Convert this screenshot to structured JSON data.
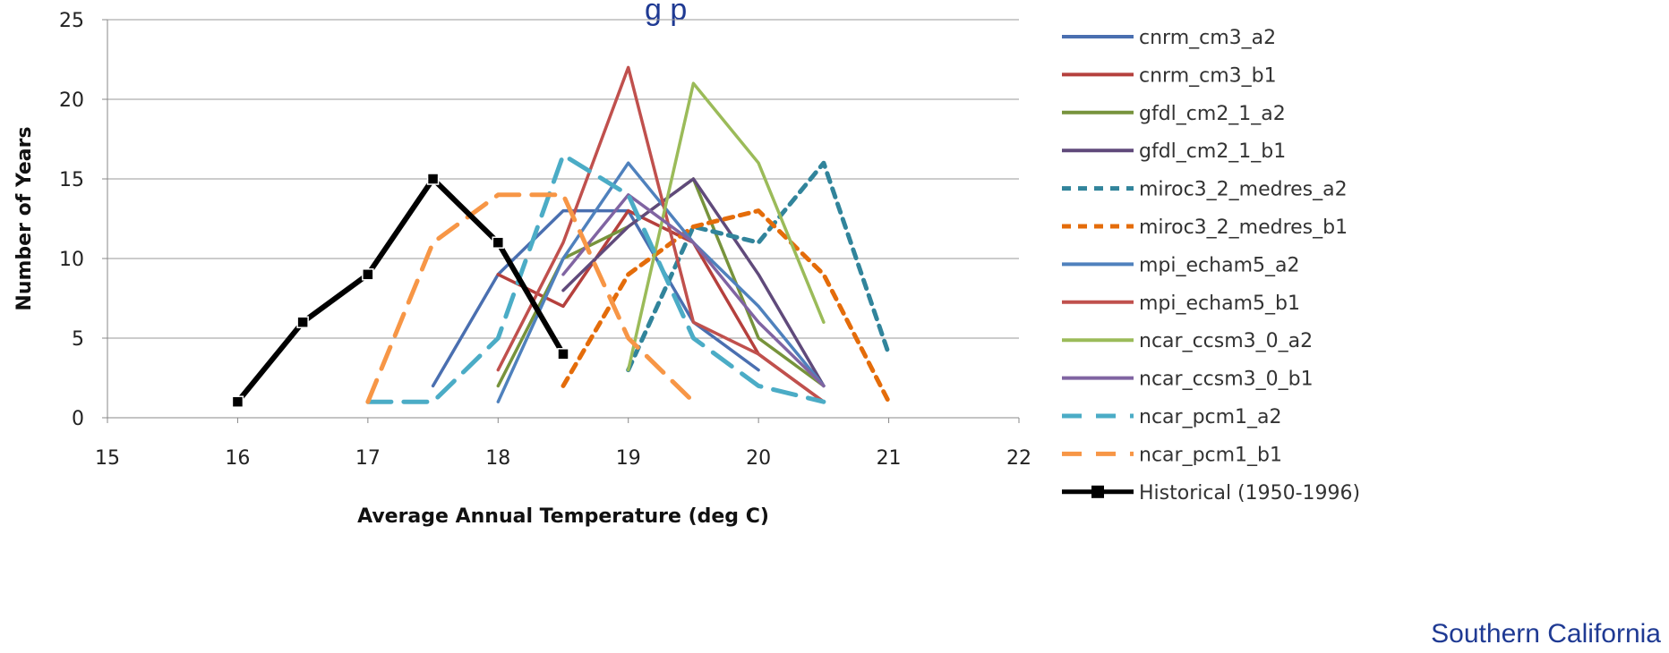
{
  "top_title_fragment": "g                                                  p",
  "footer_label": "Southern California",
  "chart_data": {
    "type": "line",
    "title": "",
    "xlabel": "Average Annual Temperature (deg C)",
    "ylabel": "Number of Years",
    "xlim": [
      15,
      22
    ],
    "ylim": [
      0,
      25
    ],
    "xticks": [
      15,
      16,
      17,
      18,
      19,
      20,
      21,
      22
    ],
    "yticks": [
      0,
      5,
      10,
      15,
      20,
      25
    ],
    "grid": "horizontal",
    "legend_position": "right",
    "series": [
      {
        "name": "cnrm_cm3_a2",
        "color": "#4a6fb0",
        "dash": "solid",
        "points": [
          [
            17.5,
            2
          ],
          [
            18,
            9
          ],
          [
            18.5,
            13
          ],
          [
            19,
            13
          ],
          [
            19.5,
            6
          ],
          [
            20,
            3
          ]
        ]
      },
      {
        "name": "cnrm_cm3_b1",
        "color": "#b5403d",
        "dash": "solid",
        "points": [
          [
            18,
            9
          ],
          [
            18.5,
            7
          ],
          [
            19,
            13
          ],
          [
            19.5,
            11
          ],
          [
            20,
            4
          ],
          [
            20.5,
            1
          ]
        ]
      },
      {
        "name": "gfdl_cm2_1_a2",
        "color": "#77933c",
        "dash": "solid",
        "points": [
          [
            18,
            2
          ],
          [
            18.5,
            10
          ],
          [
            19,
            12
          ],
          [
            19.5,
            15
          ],
          [
            20,
            5
          ],
          [
            20.5,
            2
          ]
        ]
      },
      {
        "name": "gfdl_cm2_1_b1",
        "color": "#604a7b",
        "dash": "solid",
        "points": [
          [
            18.5,
            8
          ],
          [
            19,
            12
          ],
          [
            19.5,
            15
          ],
          [
            20,
            9
          ],
          [
            20.5,
            2
          ]
        ]
      },
      {
        "name": "miroc3_2_medres_a2",
        "color": "#31849b",
        "dash": "short",
        "points": [
          [
            19,
            3
          ],
          [
            19.5,
            12
          ],
          [
            20,
            11
          ],
          [
            20.5,
            16
          ],
          [
            21,
            4
          ]
        ]
      },
      {
        "name": "miroc3_2_medres_b1",
        "color": "#e46c0a",
        "dash": "short",
        "points": [
          [
            18.5,
            2
          ],
          [
            19,
            9
          ],
          [
            19.5,
            12
          ],
          [
            20,
            13
          ],
          [
            20.5,
            9
          ],
          [
            21,
            1
          ]
        ]
      },
      {
        "name": "mpi_echam5_a2",
        "color": "#4f81bd",
        "dash": "solid",
        "points": [
          [
            18,
            1
          ],
          [
            18.5,
            10
          ],
          [
            19,
            16
          ],
          [
            19.5,
            11
          ],
          [
            20,
            7
          ],
          [
            20.5,
            2
          ]
        ]
      },
      {
        "name": "mpi_echam5_b1",
        "color": "#c0504d",
        "dash": "solid",
        "points": [
          [
            18,
            3
          ],
          [
            18.5,
            11
          ],
          [
            19,
            22
          ],
          [
            19.5,
            6
          ],
          [
            20,
            4
          ],
          [
            20.5,
            1
          ]
        ]
      },
      {
        "name": "ncar_ccsm3_0_a2",
        "color": "#9bbb59",
        "dash": "solid",
        "points": [
          [
            19,
            3
          ],
          [
            19.5,
            21
          ],
          [
            20,
            16
          ],
          [
            20.5,
            6
          ]
        ]
      },
      {
        "name": "ncar_ccsm3_0_b1",
        "color": "#8064a2",
        "dash": "solid",
        "points": [
          [
            18.5,
            9
          ],
          [
            19,
            14
          ],
          [
            19.5,
            11
          ],
          [
            20,
            6
          ],
          [
            20.5,
            2
          ]
        ]
      },
      {
        "name": "ncar_pcm1_a2",
        "color": "#4bacc6",
        "dash": "long",
        "points": [
          [
            17,
            1
          ],
          [
            17.5,
            1
          ],
          [
            18,
            5
          ],
          [
            18.5,
            16.5
          ],
          [
            19,
            14
          ],
          [
            19.5,
            5
          ],
          [
            20,
            2
          ],
          [
            20.5,
            1
          ]
        ]
      },
      {
        "name": "ncar_pcm1_b1",
        "color": "#f79646",
        "dash": "long",
        "points": [
          [
            17,
            1
          ],
          [
            17.5,
            11
          ],
          [
            18,
            14
          ],
          [
            18.5,
            14
          ],
          [
            19,
            5
          ],
          [
            19.5,
            1
          ]
        ]
      },
      {
        "name": "Historical (1950-1996)",
        "color": "#000000",
        "dash": "solid",
        "marker": "square",
        "points": [
          [
            16,
            1
          ],
          [
            16.5,
            6
          ],
          [
            17,
            9
          ],
          [
            17.5,
            15
          ],
          [
            18,
            11
          ],
          [
            18.5,
            4
          ]
        ]
      }
    ]
  }
}
